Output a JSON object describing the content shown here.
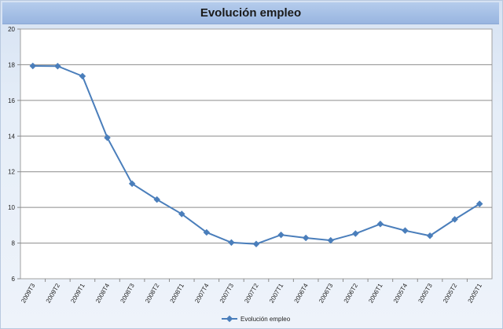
{
  "chart_data": {
    "type": "line",
    "title": "Evolución empleo",
    "categories": [
      "2009T3",
      "2009T2",
      "2009T1",
      "2008T4",
      "2008T3",
      "2008T2",
      "2008T1",
      "2007T4",
      "2007T3",
      "2007T2",
      "2007T1",
      "2006T4",
      "2006T3",
      "2006T2",
      "2006T1",
      "2005T4",
      "2005T3",
      "2005T2",
      "2005T1"
    ],
    "series": [
      {
        "name": "Evolución empleo",
        "values": [
          17.93,
          17.92,
          17.36,
          13.91,
          11.33,
          10.44,
          9.63,
          8.6,
          8.03,
          7.95,
          8.46,
          8.29,
          8.15,
          8.53,
          9.07,
          8.7,
          8.41,
          9.33,
          10.2
        ]
      }
    ],
    "ylim": [
      6,
      20
    ],
    "yticks": [
      6,
      8,
      10,
      12,
      14,
      16,
      18,
      20
    ],
    "grid": true,
    "legend": "bottom",
    "color": "#4a7ebb"
  }
}
